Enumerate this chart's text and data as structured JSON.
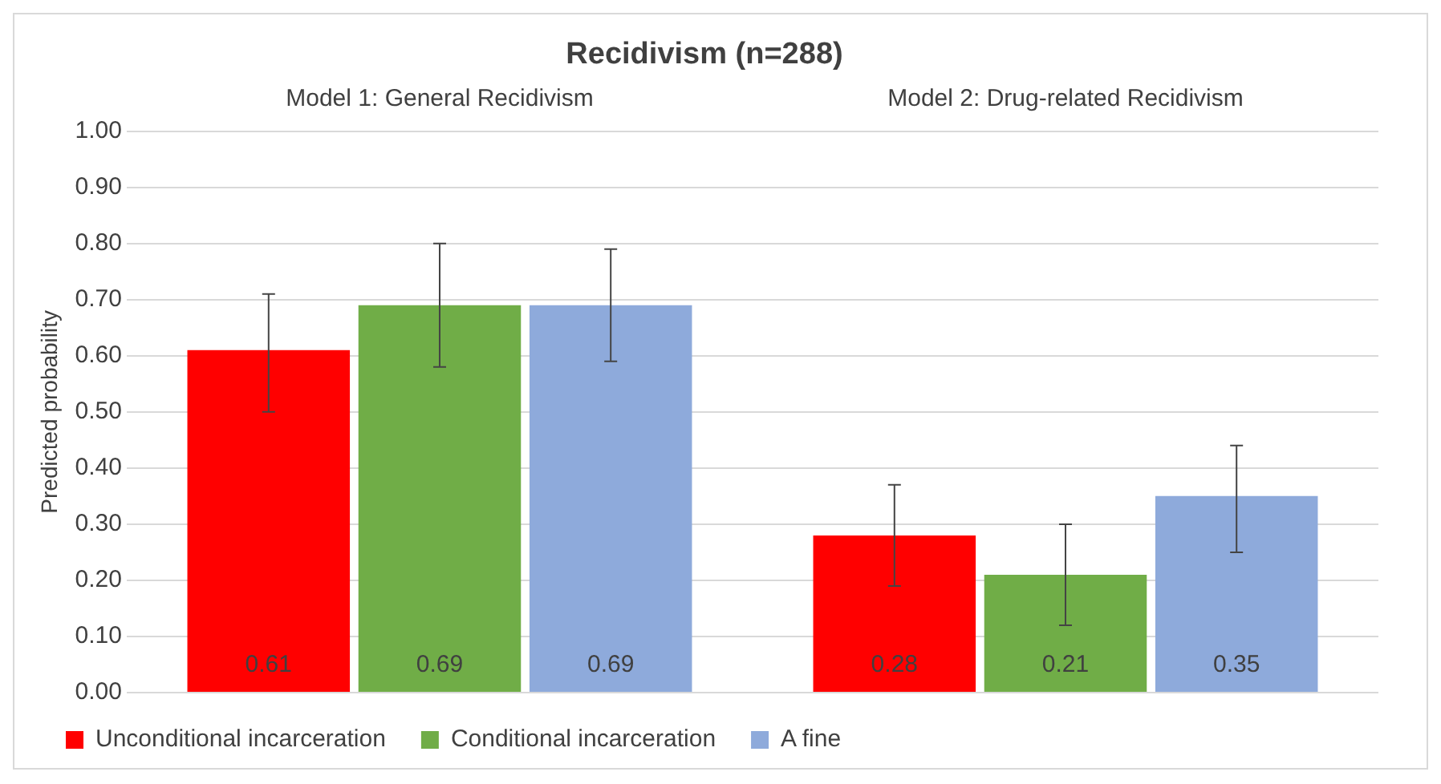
{
  "chart_data": {
    "type": "bar",
    "title": "Recidivism (n=288)",
    "ylabel": "Predicted probability",
    "categories": [
      "Model 1: General Recidivism",
      "Model 2: Drug-related Recidivism"
    ],
    "series": [
      {
        "name": "Unconditional incarceration",
        "color": "#ff0000",
        "values": [
          0.61,
          0.28
        ],
        "errors": [
          [
            0.5,
            0.71
          ],
          [
            0.19,
            0.37
          ]
        ]
      },
      {
        "name": "Conditional incarceration",
        "color": "#70ad47",
        "values": [
          0.69,
          0.21
        ],
        "errors": [
          [
            0.58,
            0.8
          ],
          [
            0.12,
            0.3
          ]
        ]
      },
      {
        "name": "A fine",
        "color": "#8eaadb",
        "values": [
          0.69,
          0.35
        ],
        "errors": [
          [
            0.59,
            0.79
          ],
          [
            0.25,
            0.44
          ]
        ]
      }
    ],
    "ylim": [
      0,
      1
    ],
    "yticks": [
      {
        "value": 0,
        "label": "0.00"
      },
      {
        "value": 0.1,
        "label": "0.10"
      },
      {
        "value": 0.2,
        "label": "0.20"
      },
      {
        "value": 0.3,
        "label": "0.30"
      },
      {
        "value": 0.4,
        "label": "0.40"
      },
      {
        "value": 0.5,
        "label": "0.50"
      },
      {
        "value": 0.6,
        "label": "0.60"
      },
      {
        "value": 0.7,
        "label": "0.70"
      },
      {
        "value": 0.8,
        "label": "0.80"
      },
      {
        "value": 0.9,
        "label": "0.90"
      },
      {
        "value": 1,
        "label": "1.00"
      }
    ],
    "grid": "y",
    "legend": "bottom",
    "data_labels": true
  }
}
